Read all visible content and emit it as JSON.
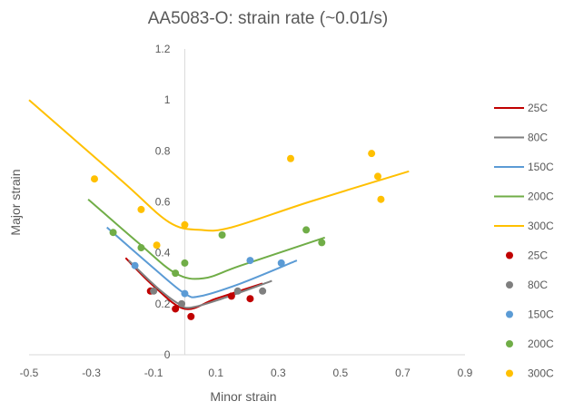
{
  "chart_data": {
    "type": "scatter",
    "title": "AA5083-O: strain rate (~0.01/s)",
    "xlabel": "Minor strain",
    "ylabel": "Major strain",
    "xlim": [
      -0.5,
      0.9
    ],
    "ylim": [
      0,
      1.2
    ],
    "x_ticks": [
      "-0.5",
      "-0.3",
      "-0.1",
      "0.1",
      "0.3",
      "0.5",
      "0.7",
      "0.9"
    ],
    "y_ticks": [
      "0",
      "0.2",
      "0.4",
      "0.6",
      "0.8",
      "1",
      "1.2"
    ],
    "grid": false,
    "legend_position": "right",
    "colors": {
      "25C": "#c00000",
      "80C": "#7f7f7f",
      "150C": "#5b9bd5",
      "200C": "#70ad47",
      "300C": "#ffc000"
    },
    "line_series": [
      {
        "name": "25C",
        "color": "#c00000",
        "points": [
          [
            -0.19,
            0.38
          ],
          [
            -0.1,
            0.27
          ],
          [
            0.0,
            0.18
          ],
          [
            0.1,
            0.22
          ],
          [
            0.25,
            0.28
          ]
        ]
      },
      {
        "name": "80C",
        "color": "#7f7f7f",
        "points": [
          [
            -0.18,
            0.37
          ],
          [
            -0.09,
            0.265
          ],
          [
            -0.02,
            0.2
          ],
          [
            0.02,
            0.185
          ],
          [
            0.12,
            0.22
          ],
          [
            0.28,
            0.29
          ]
        ]
      },
      {
        "name": "150C",
        "color": "#5b9bd5",
        "points": [
          [
            -0.25,
            0.5
          ],
          [
            -0.1,
            0.34
          ],
          [
            0.0,
            0.24
          ],
          [
            0.05,
            0.23
          ],
          [
            0.18,
            0.28
          ],
          [
            0.36,
            0.37
          ]
        ]
      },
      {
        "name": "200C",
        "color": "#70ad47",
        "points": [
          [
            -0.31,
            0.61
          ],
          [
            -0.15,
            0.44
          ],
          [
            -0.03,
            0.32
          ],
          [
            0.06,
            0.3
          ],
          [
            0.18,
            0.35
          ],
          [
            0.45,
            0.46
          ]
        ]
      },
      {
        "name": "300C",
        "color": "#ffc000",
        "points": [
          [
            -0.5,
            1.0
          ],
          [
            -0.2,
            0.68
          ],
          [
            -0.05,
            0.52
          ],
          [
            0.05,
            0.49
          ],
          [
            0.15,
            0.5
          ],
          [
            0.4,
            0.6
          ],
          [
            0.72,
            0.72
          ]
        ]
      }
    ],
    "point_series": [
      {
        "name": "25C",
        "color": "#c00000",
        "points": [
          [
            -0.11,
            0.25
          ],
          [
            -0.03,
            0.18
          ],
          [
            0.02,
            0.15
          ],
          [
            0.15,
            0.23
          ],
          [
            0.21,
            0.22
          ]
        ]
      },
      {
        "name": "80C",
        "color": "#7f7f7f",
        "points": [
          [
            -0.1,
            0.25
          ],
          [
            -0.01,
            0.2
          ],
          [
            0.17,
            0.25
          ],
          [
            0.25,
            0.25
          ]
        ]
      },
      {
        "name": "150C",
        "color": "#5b9bd5",
        "points": [
          [
            -0.16,
            0.35
          ],
          [
            0.0,
            0.24
          ],
          [
            0.21,
            0.37
          ],
          [
            0.31,
            0.36
          ]
        ]
      },
      {
        "name": "200C",
        "color": "#70ad47",
        "points": [
          [
            -0.23,
            0.48
          ],
          [
            -0.14,
            0.42
          ],
          [
            -0.03,
            0.32
          ],
          [
            0.0,
            0.36
          ],
          [
            0.12,
            0.47
          ],
          [
            0.39,
            0.49
          ],
          [
            0.44,
            0.44
          ]
        ]
      },
      {
        "name": "300C",
        "color": "#ffc000",
        "points": [
          [
            -0.29,
            0.69
          ],
          [
            -0.14,
            0.57
          ],
          [
            -0.09,
            0.43
          ],
          [
            0.0,
            0.51
          ],
          [
            0.34,
            0.77
          ],
          [
            0.6,
            0.79
          ],
          [
            0.62,
            0.7
          ],
          [
            0.63,
            0.61
          ]
        ]
      }
    ]
  }
}
